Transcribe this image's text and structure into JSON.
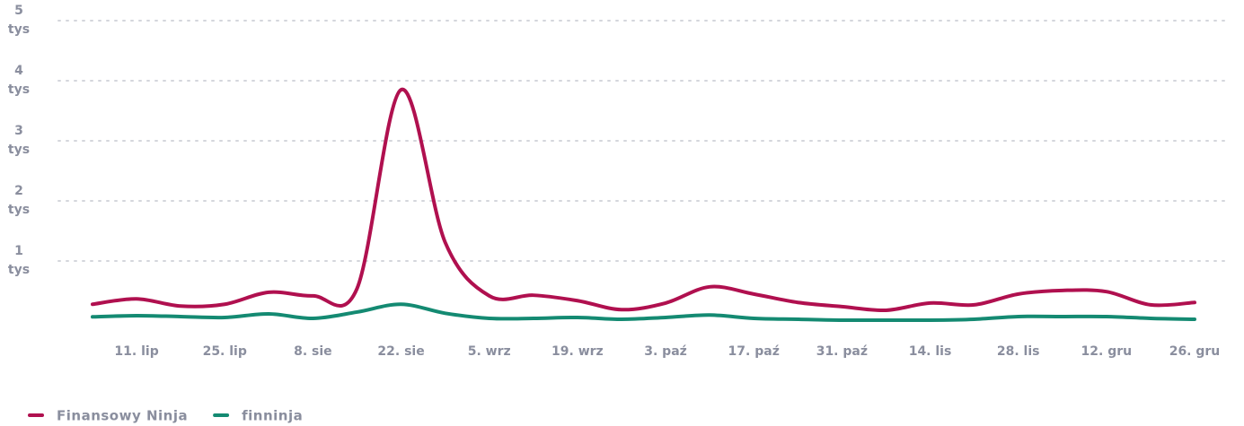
{
  "chart_data": {
    "type": "line",
    "categories": [
      null,
      "11. lip",
      null,
      "25. lip",
      null,
      "8. sie",
      null,
      "22. sie",
      null,
      "5. wrz",
      null,
      "19. wrz",
      null,
      "3. paź",
      null,
      "17. paź",
      null,
      "31. paź",
      null,
      "14. lis",
      null,
      "28. lis",
      null,
      "12. gru",
      null,
      "26. gru"
    ],
    "series": [
      {
        "name": "Finansowy Ninja",
        "color": "#b0104f",
        "values": [
          280,
          370,
          250,
          280,
          480,
          420,
          540,
          3850,
          1310,
          420,
          430,
          340,
          190,
          300,
          570,
          450,
          310,
          240,
          180,
          300,
          270,
          450,
          510,
          490,
          270,
          310
        ]
      },
      {
        "name": "finninja",
        "color": "#148a72",
        "values": [
          70,
          90,
          75,
          60,
          120,
          45,
          150,
          280,
          130,
          45,
          45,
          60,
          30,
          60,
          100,
          45,
          30,
          15,
          15,
          15,
          30,
          75,
          75,
          75,
          45,
          30
        ]
      }
    ],
    "ylim": [
      0,
      5000
    ],
    "yticks": [
      {
        "value": 1000,
        "label": "1 tys"
      },
      {
        "value": 2000,
        "label": "2 tys"
      },
      {
        "value": 3000,
        "label": "3 tys"
      },
      {
        "value": 4000,
        "label": "4 tys"
      },
      {
        "value": 5000,
        "label": "5 tys"
      }
    ],
    "grid": true,
    "legend": "bottom-left"
  }
}
